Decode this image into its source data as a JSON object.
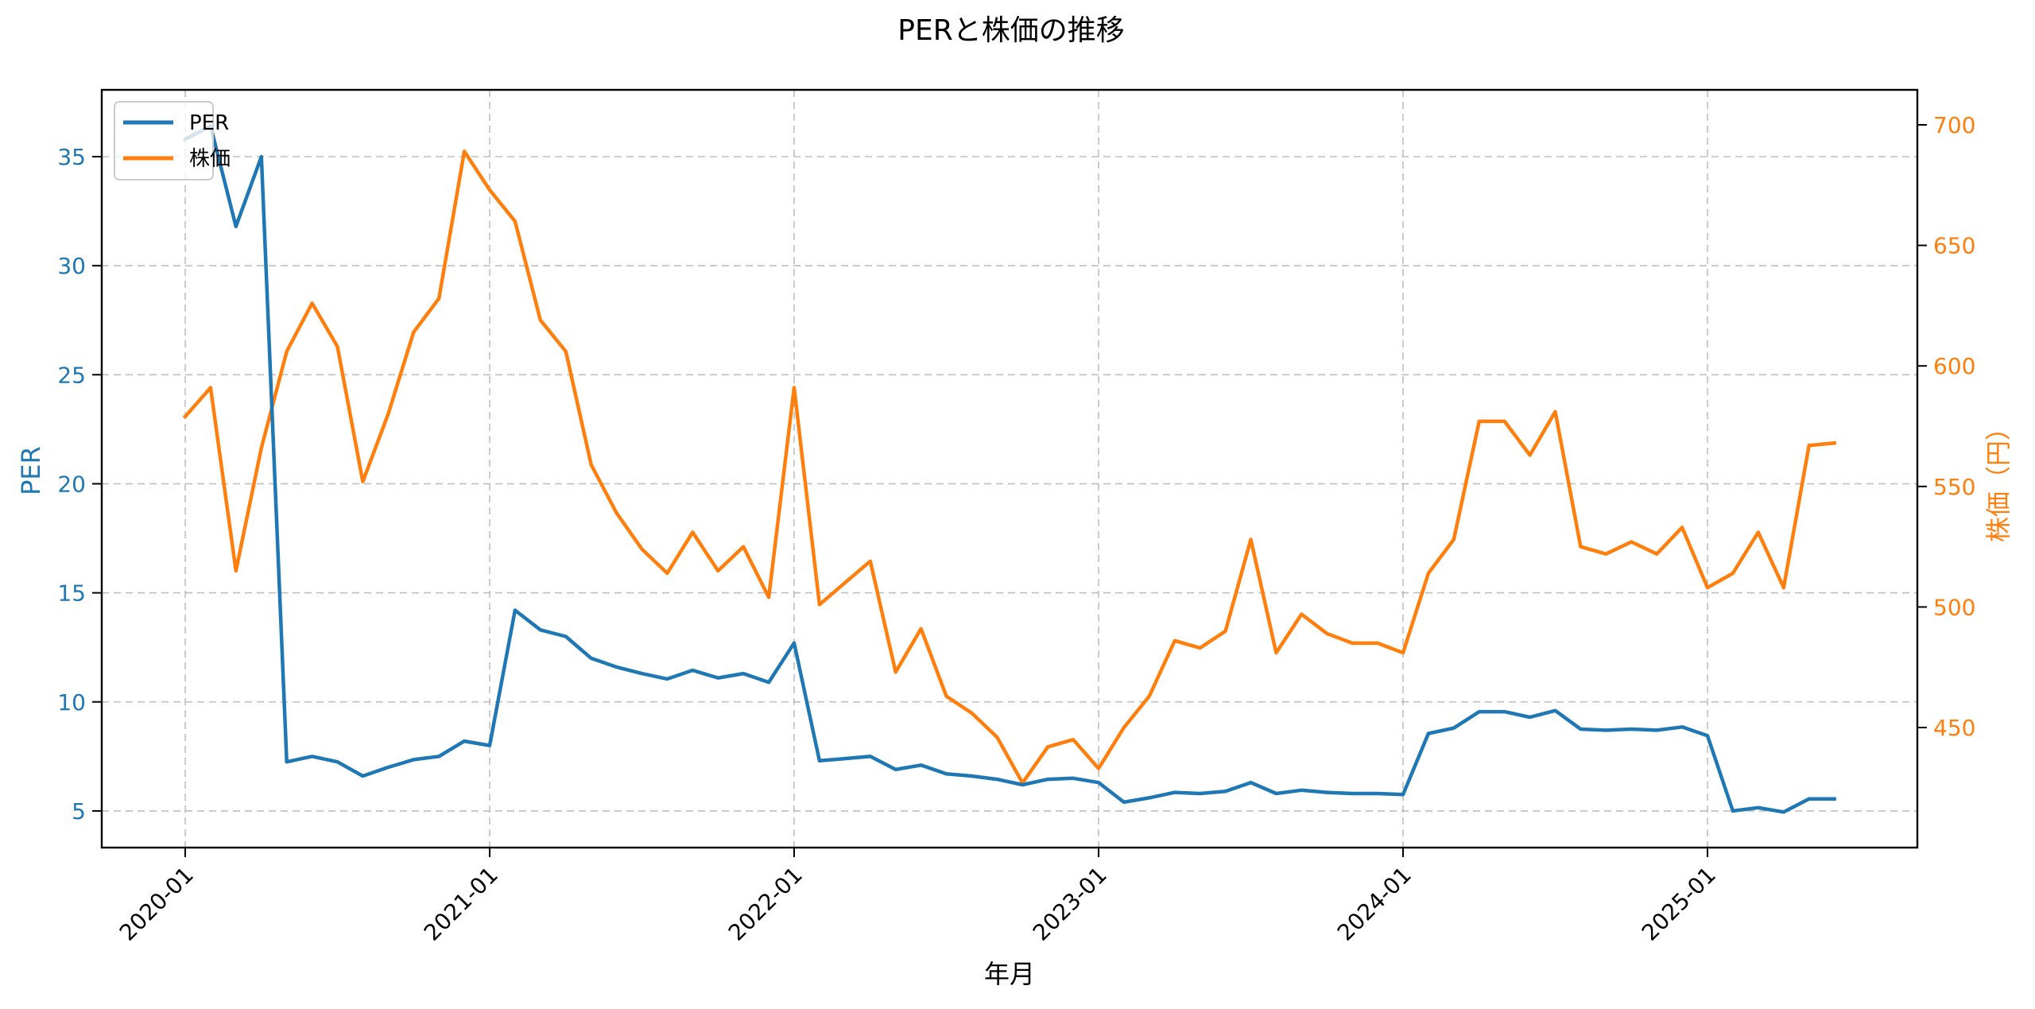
{
  "chart_data": {
    "type": "line",
    "title": "PERと株価の推移",
    "xlabel": "年月",
    "ylabel": "PER",
    "ylabel_right": "株価（円）",
    "ylim": [
      3.4,
      38.0
    ],
    "ylim_right": [
      405,
      713
    ],
    "grid": true,
    "legend_position": "upper left",
    "x_ticks": [
      "2020-01",
      "2021-01",
      "2022-01",
      "2023-01",
      "2024-01",
      "2025-01"
    ],
    "y_ticks_left": [
      5,
      10,
      15,
      20,
      25,
      30,
      35
    ],
    "y_ticks_right": [
      450,
      500,
      550,
      600,
      650,
      700
    ],
    "x": [
      "2020-01",
      "2020-02",
      "2020-03",
      "2020-04",
      "2020-05",
      "2020-06",
      "2020-07",
      "2020-08",
      "2020-09",
      "2020-10",
      "2020-11",
      "2020-12",
      "2021-01",
      "2021-02",
      "2021-03",
      "2021-04",
      "2021-05",
      "2021-06",
      "2021-07",
      "2021-08",
      "2021-09",
      "2021-10",
      "2021-11",
      "2021-12",
      "2022-01",
      "2022-02",
      "2022-03",
      "2022-04",
      "2022-05",
      "2022-06",
      "2022-07",
      "2022-08",
      "2022-09",
      "2022-10",
      "2022-11",
      "2022-12",
      "2023-01",
      "2023-02",
      "2023-03",
      "2023-04",
      "2023-05",
      "2023-06",
      "2023-07",
      "2023-08",
      "2023-09",
      "2023-10",
      "2023-11",
      "2023-12",
      "2024-01",
      "2024-02",
      "2024-03",
      "2024-04",
      "2024-05",
      "2024-06",
      "2024-07",
      "2024-08",
      "2024-09",
      "2024-10",
      "2024-11",
      "2024-12",
      "2025-01",
      "2025-02",
      "2025-03",
      "2025-04",
      "2025-05",
      "2025-06"
    ],
    "series": [
      {
        "name": "PER",
        "axis": "left",
        "color": "#1f77b4",
        "values": [
          35.8,
          36.4,
          31.8,
          35.0,
          7.25,
          7.5,
          7.25,
          6.6,
          7.0,
          7.35,
          7.5,
          8.2,
          8.0,
          14.2,
          13.3,
          13.0,
          12.0,
          11.6,
          11.3,
          11.05,
          11.45,
          11.1,
          11.3,
          10.9,
          12.7,
          7.3,
          7.4,
          7.5,
          6.9,
          7.1,
          6.7,
          6.6,
          6.45,
          6.2,
          6.45,
          6.5,
          6.3,
          5.4,
          5.6,
          5.85,
          5.8,
          5.9,
          6.3,
          5.8,
          5.95,
          5.85,
          5.8,
          5.8,
          5.75,
          8.55,
          8.8,
          9.55,
          9.55,
          9.3,
          9.6,
          8.75,
          8.7,
          8.75,
          8.7,
          8.85,
          8.45,
          5.0,
          5.15,
          4.95,
          5.55,
          5.55
        ]
      },
      {
        "name": "株価",
        "axis": "right",
        "color": "#ff7f0e",
        "values": [
          579,
          591,
          515,
          566,
          606,
          626,
          608,
          552,
          580,
          614,
          628,
          689,
          673,
          660,
          619,
          606,
          559,
          539,
          524,
          514,
          531,
          515,
          525,
          504,
          591,
          501,
          510,
          519,
          473,
          491,
          463,
          456,
          446,
          427,
          442,
          445,
          433,
          450,
          463,
          486,
          483,
          490,
          528,
          481,
          497,
          489,
          485,
          485,
          481,
          514,
          528,
          577,
          577,
          563,
          581,
          525,
          522,
          527,
          522,
          533,
          508,
          514,
          531,
          508,
          567,
          568
        ]
      }
    ]
  },
  "legend": {
    "items": [
      {
        "label": "PER",
        "color": "#1f77b4"
      },
      {
        "label": "株価",
        "color": "#ff7f0e"
      }
    ]
  }
}
